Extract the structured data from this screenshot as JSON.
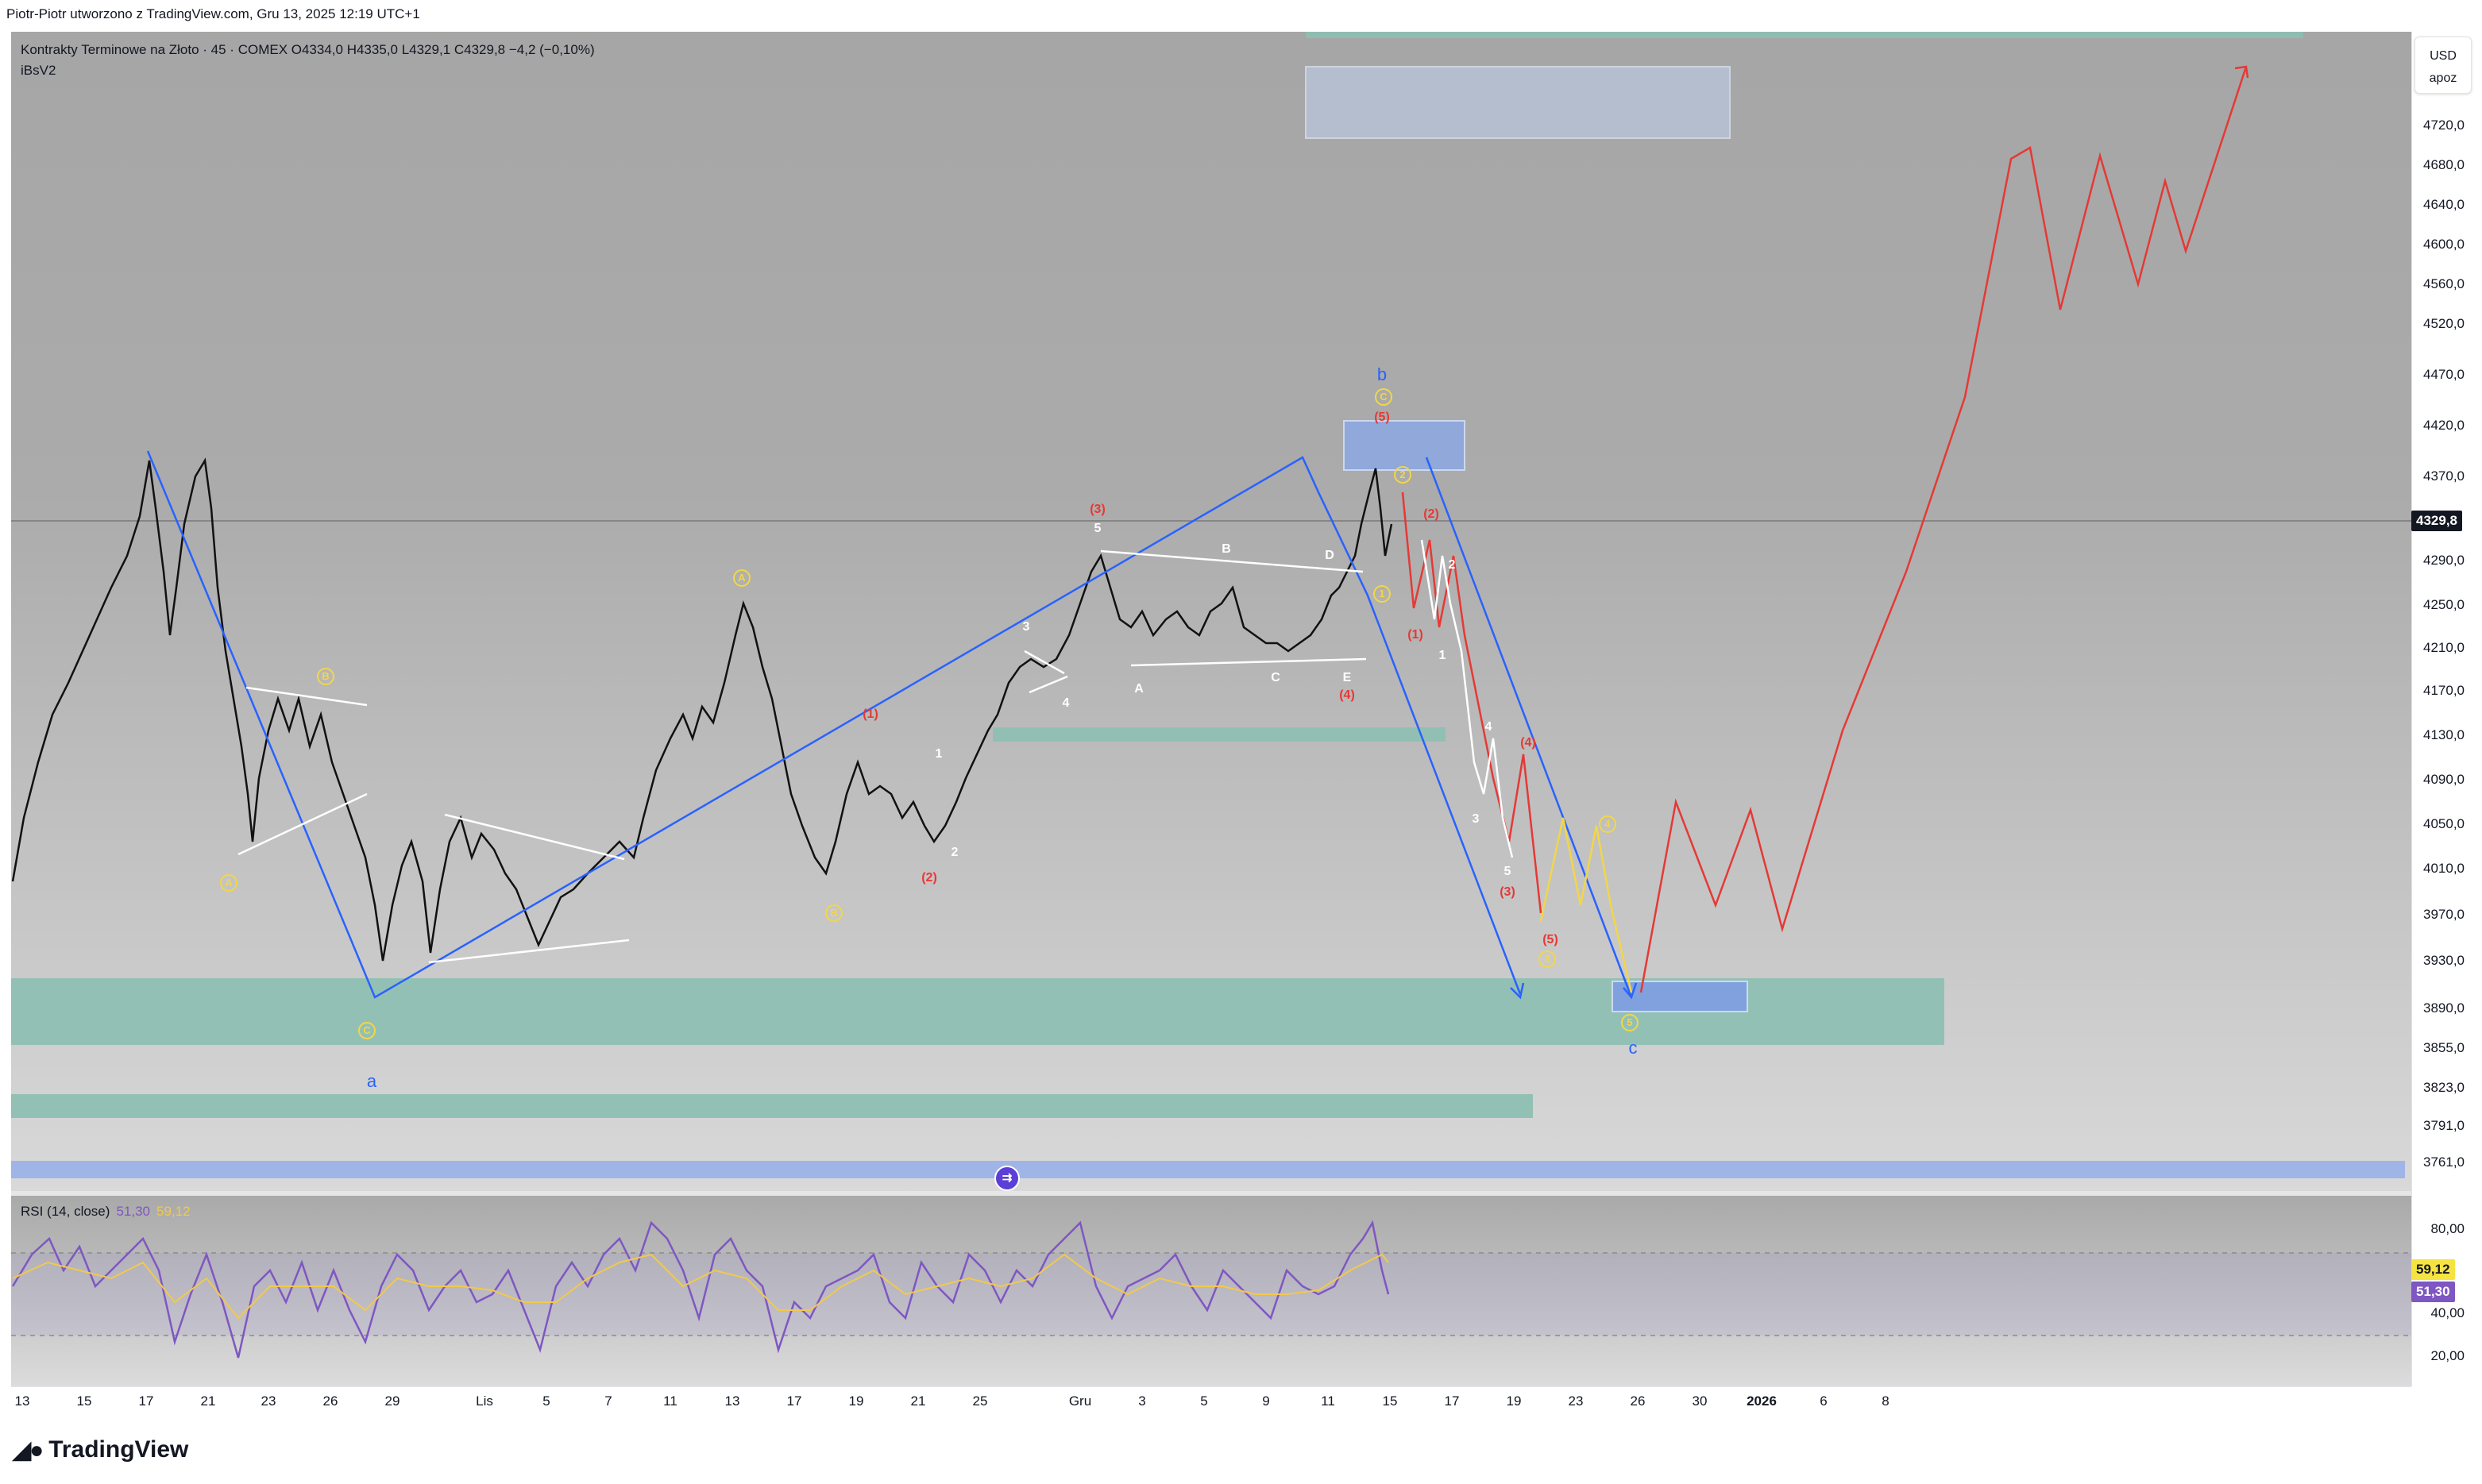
{
  "header": {
    "author_line": "Piotr-Piotr utworzono z TradingView.com, Gru 13, 2025 12:19 UTC+1"
  },
  "legend": {
    "symbol_line": "Kontrakty Terminowe na Złoto · 45 · COMEX  O4334,0  H4335,0  L4329,1  C4329,8  −4,2 (−0,10%)",
    "indicator": "iBsV2"
  },
  "rsi": {
    "label": "RSI (14, close)",
    "value1": "51,30",
    "value2": "59,12"
  },
  "currency": {
    "code": "USD",
    "unit": "apoz"
  },
  "price_axis": {
    "ticks": [
      "4720,0",
      "4680,0",
      "4640,0",
      "4600,0",
      "4560,0",
      "4520,0",
      "4470,0",
      "4420,0",
      "4370,0",
      "4290,0",
      "4250,0",
      "4210,0",
      "4170,0",
      "4130,0",
      "4090,0",
      "4050,0",
      "4010,0",
      "3970,0",
      "3930,0",
      "3890,0",
      "3855,0",
      "3823,0",
      "3791,0",
      "3761,0"
    ],
    "current_price": "4329,8",
    "rsi_ticks": [
      "80,00",
      "40,00",
      "20,00"
    ],
    "rsi_tag1": "59,12",
    "rsi_tag2": "51,30"
  },
  "time_axis": {
    "ticks": [
      "13",
      "15",
      "17",
      "21",
      "23",
      "26",
      "29",
      "Lis",
      "5",
      "7",
      "11",
      "13",
      "17",
      "19",
      "21",
      "25",
      "Gru",
      "3",
      "5",
      "9",
      "11",
      "15",
      "17",
      "19",
      "23",
      "26",
      "30",
      "2026",
      "6",
      "8"
    ]
  },
  "waves": {
    "main": [
      "a",
      "b",
      "c"
    ],
    "yellow_circles": [
      "A",
      "B",
      "C",
      "A",
      "B",
      "C",
      "1",
      "2",
      "3",
      "4",
      "5"
    ],
    "red": [
      "(1)",
      "(2)",
      "(3)",
      "(4)",
      "(5)",
      "(1)",
      "(2)",
      "(3)",
      "(4)",
      "(5)"
    ],
    "white": [
      "1",
      "2",
      "3",
      "4",
      "5",
      "A",
      "B",
      "C",
      "D",
      "E",
      "1",
      "2",
      "3",
      "4",
      "5"
    ]
  },
  "colors": {
    "accent_blue": "#2962ff",
    "wave_red": "#e53935",
    "wave_yellow": "#f2d649",
    "zone_teal": "#8fbfb2",
    "zone_blue": "#9db3e8",
    "rsi_line": "#7e57c2",
    "rsi_ma": "#f2c94c"
  },
  "brand": {
    "name": "TradingView",
    "logo_icon": "tradingview-logo-icon"
  },
  "icons": {
    "replay": "replay-icon"
  }
}
